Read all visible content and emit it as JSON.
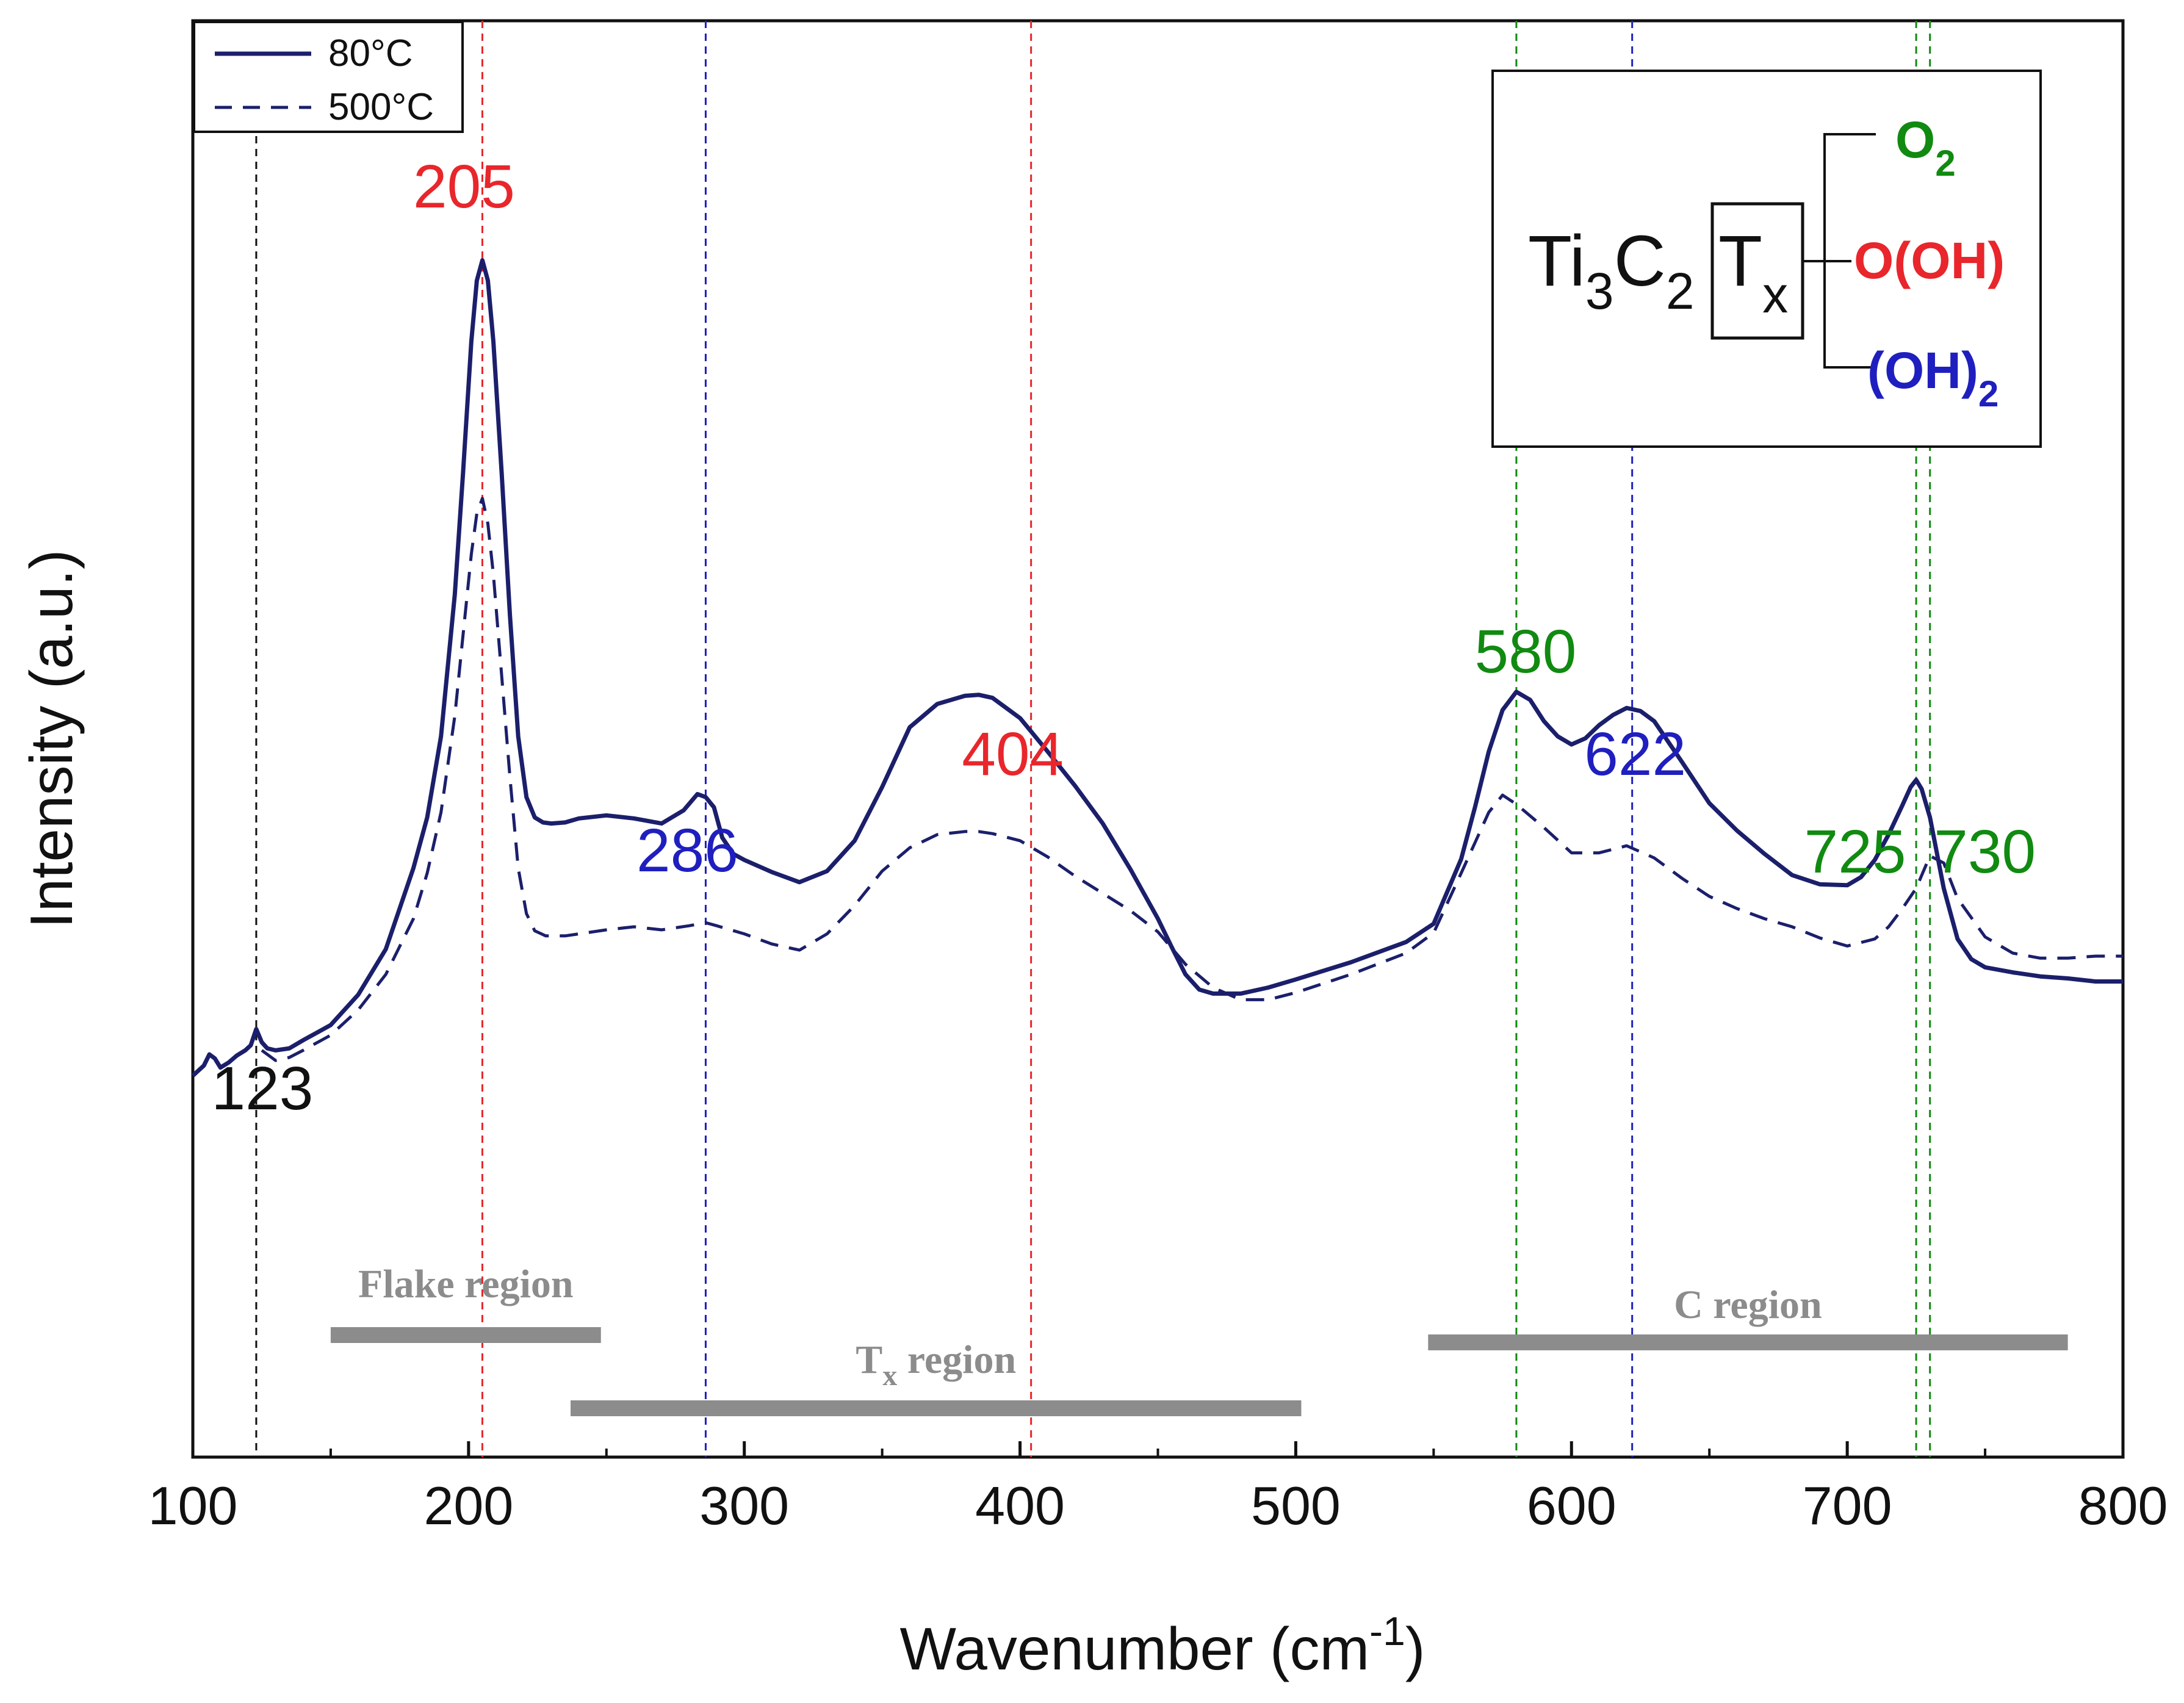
{
  "chart_data": {
    "type": "line",
    "title": "",
    "xlabel": "Wavenumber (cm",
    "xlabel_sup": "-1",
    "xlabel_close": ")",
    "ylabel": "Intensity (a.u.)",
    "xlim": [
      100,
      800
    ],
    "ylim": [
      0,
      100
    ],
    "xticks": [
      "100",
      "200",
      "300",
      "400",
      "500",
      "600",
      "700",
      "800"
    ],
    "yticks_shown": false,
    "legend": {
      "position": "top-left",
      "entries": [
        {
          "label": "80°C",
          "style": "solid"
        },
        {
          "label": "500°C",
          "style": "dashed"
        }
      ]
    },
    "colors": {
      "series": "#1b1f6b",
      "black": "#111111",
      "red": "#e8262b",
      "blue": "#1f1fbf",
      "green": "#108a10",
      "region_bar": "#8c8c8c"
    },
    "series": [
      {
        "name": "80°C",
        "style": "solid",
        "x": [
          100,
          104,
          106,
          108,
          110,
          113,
          116,
          119,
          121,
          123,
          125,
          127,
          130,
          135,
          140,
          150,
          160,
          170,
          180,
          185,
          190,
          195,
          198,
          201,
          203,
          205,
          207,
          209,
          212,
          215,
          218,
          221,
          224,
          227,
          230,
          235,
          240,
          250,
          260,
          270,
          278,
          283,
          286,
          289,
          292,
          296,
          300,
          310,
          320,
          330,
          340,
          350,
          360,
          370,
          380,
          385,
          390,
          400,
          410,
          420,
          430,
          440,
          450,
          455,
          460,
          465,
          470,
          480,
          490,
          500,
          520,
          540,
          550,
          560,
          565,
          570,
          575,
          580,
          585,
          590,
          595,
          600,
          605,
          610,
          615,
          620,
          625,
          630,
          640,
          650,
          660,
          670,
          680,
          690,
          700,
          705,
          710,
          715,
          720,
          723,
          725,
          727,
          730,
          735,
          740,
          745,
          750,
          760,
          770,
          780,
          790,
          800
        ],
        "y": [
          18.5,
          19.5,
          20.6,
          20.2,
          19.3,
          19.8,
          20.5,
          21.0,
          21.5,
          23.1,
          21.8,
          21.2,
          21.0,
          21.2,
          22.0,
          23.5,
          26.5,
          31.0,
          39.0,
          44.0,
          52.0,
          66.0,
          78.0,
          91.0,
          97.0,
          99.0,
          97.0,
          91.0,
          78.0,
          64.0,
          52.0,
          46.0,
          44.0,
          43.5,
          43.4,
          43.5,
          43.9,
          44.2,
          43.9,
          43.4,
          44.7,
          46.3,
          46.0,
          45.0,
          42.0,
          40.4,
          39.8,
          38.6,
          37.6,
          38.7,
          41.7,
          47.0,
          52.9,
          55.2,
          56.0,
          56.1,
          55.8,
          53.8,
          50.5,
          47.1,
          43.4,
          38.9,
          34.0,
          31.2,
          28.5,
          27.0,
          26.6,
          26.6,
          27.2,
          28.0,
          29.7,
          31.7,
          33.5,
          39.9,
          45.0,
          50.5,
          54.6,
          56.4,
          55.6,
          53.5,
          52.0,
          51.2,
          51.8,
          53.1,
          54.1,
          54.8,
          54.5,
          53.5,
          49.5,
          45.4,
          42.7,
          40.4,
          38.3,
          37.4,
          37.3,
          38.1,
          39.8,
          42.3,
          45.2,
          47.0,
          47.7,
          46.8,
          44.0,
          37.0,
          32.0,
          30.0,
          29.2,
          28.7,
          28.3,
          28.1,
          27.8,
          27.8
        ]
      },
      {
        "name": "500°C",
        "style": "dashed",
        "x": [
          125,
          130,
          135,
          140,
          150,
          160,
          170,
          180,
          185,
          190,
          195,
          198,
          201,
          203,
          205,
          207,
          209,
          212,
          215,
          218,
          221,
          224,
          228,
          235,
          240,
          250,
          260,
          270,
          280,
          286,
          290,
          300,
          310,
          320,
          330,
          340,
          350,
          360,
          370,
          380,
          385,
          390,
          400,
          410,
          420,
          430,
          440,
          450,
          460,
          470,
          480,
          490,
          500,
          520,
          540,
          550,
          560,
          565,
          570,
          575,
          580,
          590,
          600,
          610,
          620,
          630,
          640,
          650,
          660,
          670,
          680,
          690,
          700,
          710,
          715,
          720,
          725,
          730,
          735,
          740,
          750,
          760,
          770,
          780,
          790,
          800
        ],
        "y": [
          21.0,
          20.0,
          20.3,
          21.0,
          22.5,
          25.0,
          28.5,
          34.0,
          38.5,
          44.5,
          54.0,
          62.0,
          70.0,
          74.0,
          75.5,
          73.0,
          68.0,
          58.0,
          48.0,
          39.0,
          34.5,
          32.8,
          32.3,
          32.3,
          32.5,
          32.9,
          33.2,
          32.9,
          33.3,
          33.6,
          33.3,
          32.5,
          31.5,
          30.9,
          32.5,
          35.3,
          38.7,
          41.0,
          42.3,
          42.6,
          42.6,
          42.4,
          41.7,
          40.1,
          38.2,
          36.5,
          34.8,
          32.7,
          29.5,
          27.2,
          26.0,
          26.0,
          26.7,
          28.5,
          30.6,
          32.6,
          38.5,
          41.5,
          44.5,
          46.2,
          45.3,
          43.0,
          40.5,
          40.5,
          41.2,
          40.0,
          38.0,
          36.2,
          35.0,
          34.0,
          33.2,
          32.1,
          31.3,
          32.0,
          33.2,
          35.0,
          37.0,
          40.2,
          39.5,
          36.0,
          32.2,
          30.6,
          30.1,
          30.1,
          30.3,
          30.3
        ]
      }
    ],
    "peaks": [
      {
        "x": 123,
        "label": "123",
        "color": "black"
      },
      {
        "x": 205,
        "label": "205",
        "color": "red"
      },
      {
        "x": 286,
        "label": "286",
        "color": "blue"
      },
      {
        "x": 404,
        "label": "404",
        "color": "red"
      },
      {
        "x": 580,
        "label": "580",
        "color": "green"
      },
      {
        "x": 622,
        "label": "622",
        "color": "blue"
      },
      {
        "x": 725,
        "label": "725",
        "color": "green"
      },
      {
        "x": 730,
        "label": "730",
        "color": "green"
      }
    ],
    "regions": [
      {
        "name": "flake",
        "label_main": "Flake region",
        "label_sub": "",
        "label_rest": "",
        "x_start": 150,
        "x_end": 248
      },
      {
        "name": "tx",
        "label_main": "T",
        "label_sub": "x",
        "label_rest": " region",
        "x_start": 237,
        "x_end": 502
      },
      {
        "name": "c",
        "label_main": "C region",
        "label_sub": "",
        "label_rest": "",
        "x_start": 548,
        "x_end": 780
      }
    ],
    "inset": {
      "formula": {
        "ti": "Ti",
        "ti_sub": "3",
        "c": "C",
        "c_sub": "2",
        "t": "T",
        "t_sub": "x"
      },
      "branches": [
        {
          "text": "O",
          "sub": "2",
          "color": "green"
        },
        {
          "text": "O(OH)",
          "sub": "",
          "color": "red"
        },
        {
          "text": "(OH)",
          "sub": "2",
          "color": "blue"
        }
      ]
    }
  }
}
